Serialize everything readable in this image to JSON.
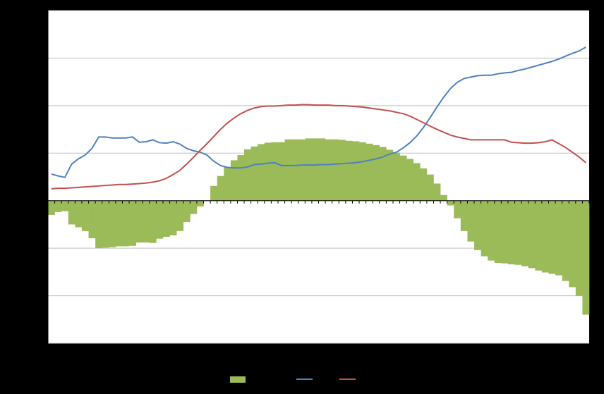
{
  "chart_data": {
    "type": "combo",
    "categories": [
      null,
      null,
      null,
      null,
      null,
      null,
      null,
      null,
      null,
      null,
      null,
      null,
      null,
      null,
      null,
      null,
      null,
      null,
      null,
      null,
      null,
      null,
      null,
      null,
      null,
      null,
      null,
      null,
      null,
      null,
      null,
      null,
      null,
      null,
      null,
      null,
      null,
      null,
      null,
      null,
      null,
      null,
      null,
      null,
      null,
      null,
      null,
      null,
      null,
      null,
      null,
      null,
      null,
      null,
      null,
      null,
      null,
      null,
      null,
      null,
      null,
      null,
      null,
      null,
      null,
      null,
      null,
      null,
      null,
      null,
      null,
      null,
      null,
      null,
      null,
      null,
      null,
      null,
      null,
      null
    ],
    "ylim": [
      -3,
      4
    ],
    "yticks": [
      -3,
      -2,
      -1,
      0,
      1,
      2,
      3,
      4
    ],
    "grid": true,
    "series": [
      {
        "type": "bar",
        "color": "#9bbb59",
        "values": [
          -0.3,
          -0.24,
          -0.22,
          -0.5,
          -0.56,
          -0.64,
          -0.79,
          -1.0,
          -0.99,
          -0.98,
          -0.96,
          -0.96,
          -0.95,
          -0.88,
          -0.88,
          -0.89,
          -0.8,
          -0.76,
          -0.73,
          -0.64,
          -0.45,
          -0.28,
          -0.12,
          -0.01,
          0.31,
          0.52,
          0.71,
          0.85,
          0.96,
          1.08,
          1.14,
          1.19,
          1.22,
          1.23,
          1.23,
          1.29,
          1.29,
          1.29,
          1.31,
          1.31,
          1.31,
          1.29,
          1.29,
          1.28,
          1.26,
          1.25,
          1.23,
          1.2,
          1.17,
          1.13,
          1.07,
          1.01,
          0.95,
          0.88,
          0.79,
          0.68,
          0.55,
          0.36,
          0.12,
          -0.1,
          -0.37,
          -0.64,
          -0.86,
          -1.04,
          -1.17,
          -1.26,
          -1.31,
          -1.32,
          -1.34,
          -1.35,
          -1.38,
          -1.42,
          -1.47,
          -1.51,
          -1.54,
          -1.57,
          -1.69,
          -1.82,
          -2.0,
          -2.4
        ]
      },
      {
        "type": "line",
        "color": "#4f81bd",
        "values": [
          0.56,
          0.52,
          0.49,
          0.77,
          0.88,
          0.96,
          1.1,
          1.34,
          1.34,
          1.32,
          1.32,
          1.32,
          1.34,
          1.23,
          1.24,
          1.28,
          1.22,
          1.21,
          1.24,
          1.19,
          1.1,
          1.05,
          1.02,
          0.96,
          0.83,
          0.74,
          0.7,
          0.69,
          0.69,
          0.71,
          0.76,
          0.77,
          0.79,
          0.8,
          0.74,
          0.74,
          0.74,
          0.75,
          0.75,
          0.75,
          0.76,
          0.76,
          0.77,
          0.78,
          0.79,
          0.8,
          0.82,
          0.85,
          0.88,
          0.92,
          0.98,
          1.02,
          1.11,
          1.22,
          1.36,
          1.54,
          1.75,
          1.97,
          2.18,
          2.36,
          2.49,
          2.57,
          2.6,
          2.63,
          2.64,
          2.64,
          2.67,
          2.69,
          2.7,
          2.74,
          2.77,
          2.81,
          2.85,
          2.89,
          2.93,
          2.98,
          3.04,
          3.1,
          3.15,
          3.23
        ]
      },
      {
        "type": "line",
        "color": "#c0504d",
        "values": [
          0.25,
          0.26,
          0.26,
          0.27,
          0.28,
          0.29,
          0.3,
          0.31,
          0.32,
          0.33,
          0.34,
          0.34,
          0.35,
          0.36,
          0.37,
          0.39,
          0.42,
          0.47,
          0.55,
          0.64,
          0.77,
          0.91,
          1.06,
          1.2,
          1.35,
          1.5,
          1.63,
          1.74,
          1.83,
          1.9,
          1.95,
          1.98,
          1.99,
          1.99,
          2.0,
          2.01,
          2.01,
          2.02,
          2.02,
          2.01,
          2.01,
          2.01,
          2.0,
          2.0,
          1.99,
          1.98,
          1.97,
          1.95,
          1.93,
          1.91,
          1.89,
          1.86,
          1.83,
          1.78,
          1.71,
          1.64,
          1.57,
          1.5,
          1.44,
          1.38,
          1.34,
          1.31,
          1.28,
          1.28,
          1.28,
          1.28,
          1.28,
          1.28,
          1.23,
          1.22,
          1.21,
          1.21,
          1.22,
          1.24,
          1.28,
          1.2,
          1.12,
          1.02,
          0.92,
          0.8
        ]
      }
    ]
  }
}
